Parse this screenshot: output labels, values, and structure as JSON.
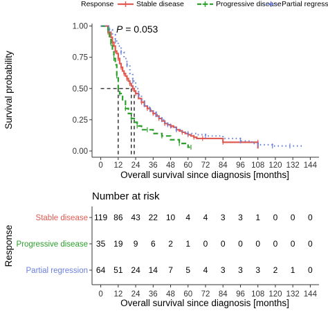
{
  "chart_data": [
    {
      "type": "line",
      "subtype": "kaplan-meier",
      "legend": {
        "title": "Response",
        "position": "top",
        "entries": [
          "Stable disease",
          "Progressive disease",
          "Partial regressi"
        ]
      },
      "annotation": {
        "label": "P",
        "text": " = 0.053"
      },
      "xlabel": "Overall survival since diagnosis [months]",
      "ylabel": "Survival probability",
      "xlim": [
        -6,
        150
      ],
      "ylim": [
        -0.05,
        1.02
      ],
      "xticks": [
        "0",
        "12",
        "24",
        "36",
        "48",
        "60",
        "72",
        "84",
        "96",
        "108",
        "120",
        "132",
        "144"
      ],
      "yticks": [
        "0.00",
        "0.25",
        "0.50",
        "0.75",
        "1.00"
      ],
      "grid": false,
      "median_reference": {
        "y": 0.5,
        "medians_months": [
          12,
          21,
          23
        ]
      },
      "series": [
        {
          "name": "Stable disease",
          "color": "#e05a52",
          "dash": "solid",
          "x": [
            0,
            5,
            7,
            8,
            9,
            10,
            11,
            12,
            13,
            14,
            15,
            16,
            17,
            18,
            19,
            20,
            21,
            22,
            23,
            24,
            26,
            28,
            30,
            32,
            34,
            36,
            38,
            40,
            42,
            44,
            46,
            48,
            50,
            52,
            54,
            56,
            58,
            60,
            62,
            64,
            66,
            70,
            80,
            84,
            96,
            108,
            108
          ],
          "y": [
            1.0,
            0.95,
            0.91,
            0.87,
            0.84,
            0.8,
            0.78,
            0.74,
            0.7,
            0.67,
            0.64,
            0.62,
            0.6,
            0.58,
            0.56,
            0.54,
            0.52,
            0.5,
            0.48,
            0.46,
            0.42,
            0.39,
            0.36,
            0.34,
            0.32,
            0.3,
            0.28,
            0.26,
            0.24,
            0.22,
            0.21,
            0.2,
            0.19,
            0.17,
            0.16,
            0.15,
            0.14,
            0.13,
            0.12,
            0.11,
            0.1,
            0.1,
            0.1,
            0.07,
            0.07,
            0.07,
            0.02
          ]
        },
        {
          "name": "Progressive disease",
          "color": "#2ca02c",
          "dash": "long-dash",
          "x": [
            0,
            5,
            6,
            7,
            8,
            9,
            10,
            11,
            12,
            13,
            15,
            17,
            19,
            21,
            23,
            25,
            28,
            32,
            36,
            42,
            48,
            54,
            60,
            62
          ],
          "y": [
            1.0,
            0.97,
            0.9,
            0.86,
            0.8,
            0.74,
            0.69,
            0.6,
            0.5,
            0.46,
            0.4,
            0.34,
            0.3,
            0.26,
            0.23,
            0.2,
            0.17,
            0.17,
            0.14,
            0.12,
            0.09,
            0.06,
            0.03,
            0.03
          ]
        },
        {
          "name": "Partial regression",
          "color": "#6a7fdb",
          "dash": "dotted",
          "x": [
            0,
            6,
            8,
            10,
            12,
            14,
            16,
            18,
            20,
            22,
            24,
            26,
            28,
            30,
            32,
            34,
            36,
            38,
            40,
            42,
            44,
            46,
            48,
            52,
            56,
            60,
            66,
            72,
            84,
            96,
            104,
            108,
            114,
            118,
            124,
            130,
            140
          ],
          "y": [
            1.0,
            0.97,
            0.93,
            0.88,
            0.84,
            0.79,
            0.74,
            0.69,
            0.62,
            0.56,
            0.5,
            0.45,
            0.41,
            0.37,
            0.35,
            0.33,
            0.31,
            0.29,
            0.27,
            0.25,
            0.23,
            0.21,
            0.19,
            0.17,
            0.15,
            0.14,
            0.13,
            0.12,
            0.1,
            0.08,
            0.06,
            0.05,
            0.05,
            0.04,
            0.04,
            0.04,
            0.04
          ]
        }
      ]
    },
    {
      "type": "table",
      "title": "Number at risk",
      "ylabel": "Response",
      "xlabel": "Overall survival since diagnosis [months]",
      "columns": [
        "0",
        "12",
        "24",
        "36",
        "48",
        "60",
        "72",
        "84",
        "96",
        "108",
        "120",
        "132",
        "144"
      ],
      "rows": [
        {
          "label": "Stable disease",
          "color": "#e05a52",
          "values": [
            "119",
            "86",
            "43",
            "22",
            "10",
            "4",
            "4",
            "3",
            "3",
            "1",
            "0",
            "0",
            "0"
          ]
        },
        {
          "label": "Progressive disease",
          "color": "#2ca02c",
          "values": [
            "35",
            "19",
            "9",
            "6",
            "2",
            "1",
            "0",
            "0",
            "0",
            "0",
            "0",
            "0",
            "0"
          ]
        },
        {
          "label": "Partial regression",
          "color": "#6a7fdb",
          "values": [
            "64",
            "51",
            "24",
            "14",
            "7",
            "5",
            "4",
            "3",
            "3",
            "3",
            "2",
            "1",
            "0"
          ]
        }
      ]
    }
  ]
}
